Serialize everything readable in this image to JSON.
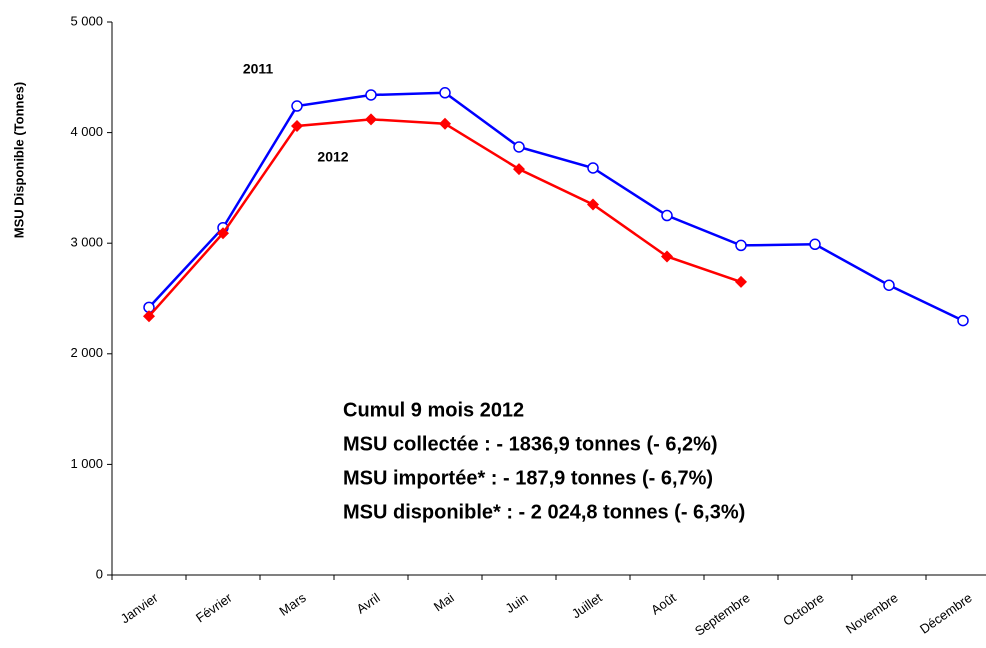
{
  "chart_data": {
    "type": "line",
    "y_label": "MSU Disponible (Tonnes)",
    "categories": [
      "Janvier",
      "Février",
      "Mars",
      "Avril",
      "Mai",
      "Juin",
      "Juillet",
      "Août",
      "Septembre",
      "Octobre",
      "Novembre",
      "Décembre"
    ],
    "series": [
      {
        "name": "2011",
        "color": "#0000ff",
        "marker": "circle",
        "values": [
          2420,
          3140,
          4240,
          4340,
          4360,
          3870,
          3680,
          3250,
          2980,
          2990,
          2620,
          2300
        ]
      },
      {
        "name": "2012",
        "color": "#ff0000",
        "marker": "diamond",
        "values": [
          2340,
          3090,
          4060,
          4120,
          4080,
          3670,
          3350,
          2880,
          2650,
          null,
          null,
          null
        ]
      }
    ],
    "ylim": [
      0,
      5000
    ],
    "yticks": [
      0,
      {
        "value": 1000,
        "label": "1 000"
      },
      {
        "value": 2000,
        "label": "2 000"
      },
      {
        "value": 3000,
        "label": "3 000"
      },
      {
        "value": 4000,
        "label": "4 000"
      },
      {
        "value": 5000,
        "label": "5 000"
      }
    ],
    "annotation_color": "#ff0000",
    "annotations": [
      "Cumul 9 mois 2012",
      "MSU collectée : - 1836,9 tonnes (- 6,2%)",
      "MSU importée* : - 187,9 tonnes (- 6,7%)",
      "MSU disponible* : - 2 024,8 tonnes (- 6,3%)"
    ]
  }
}
